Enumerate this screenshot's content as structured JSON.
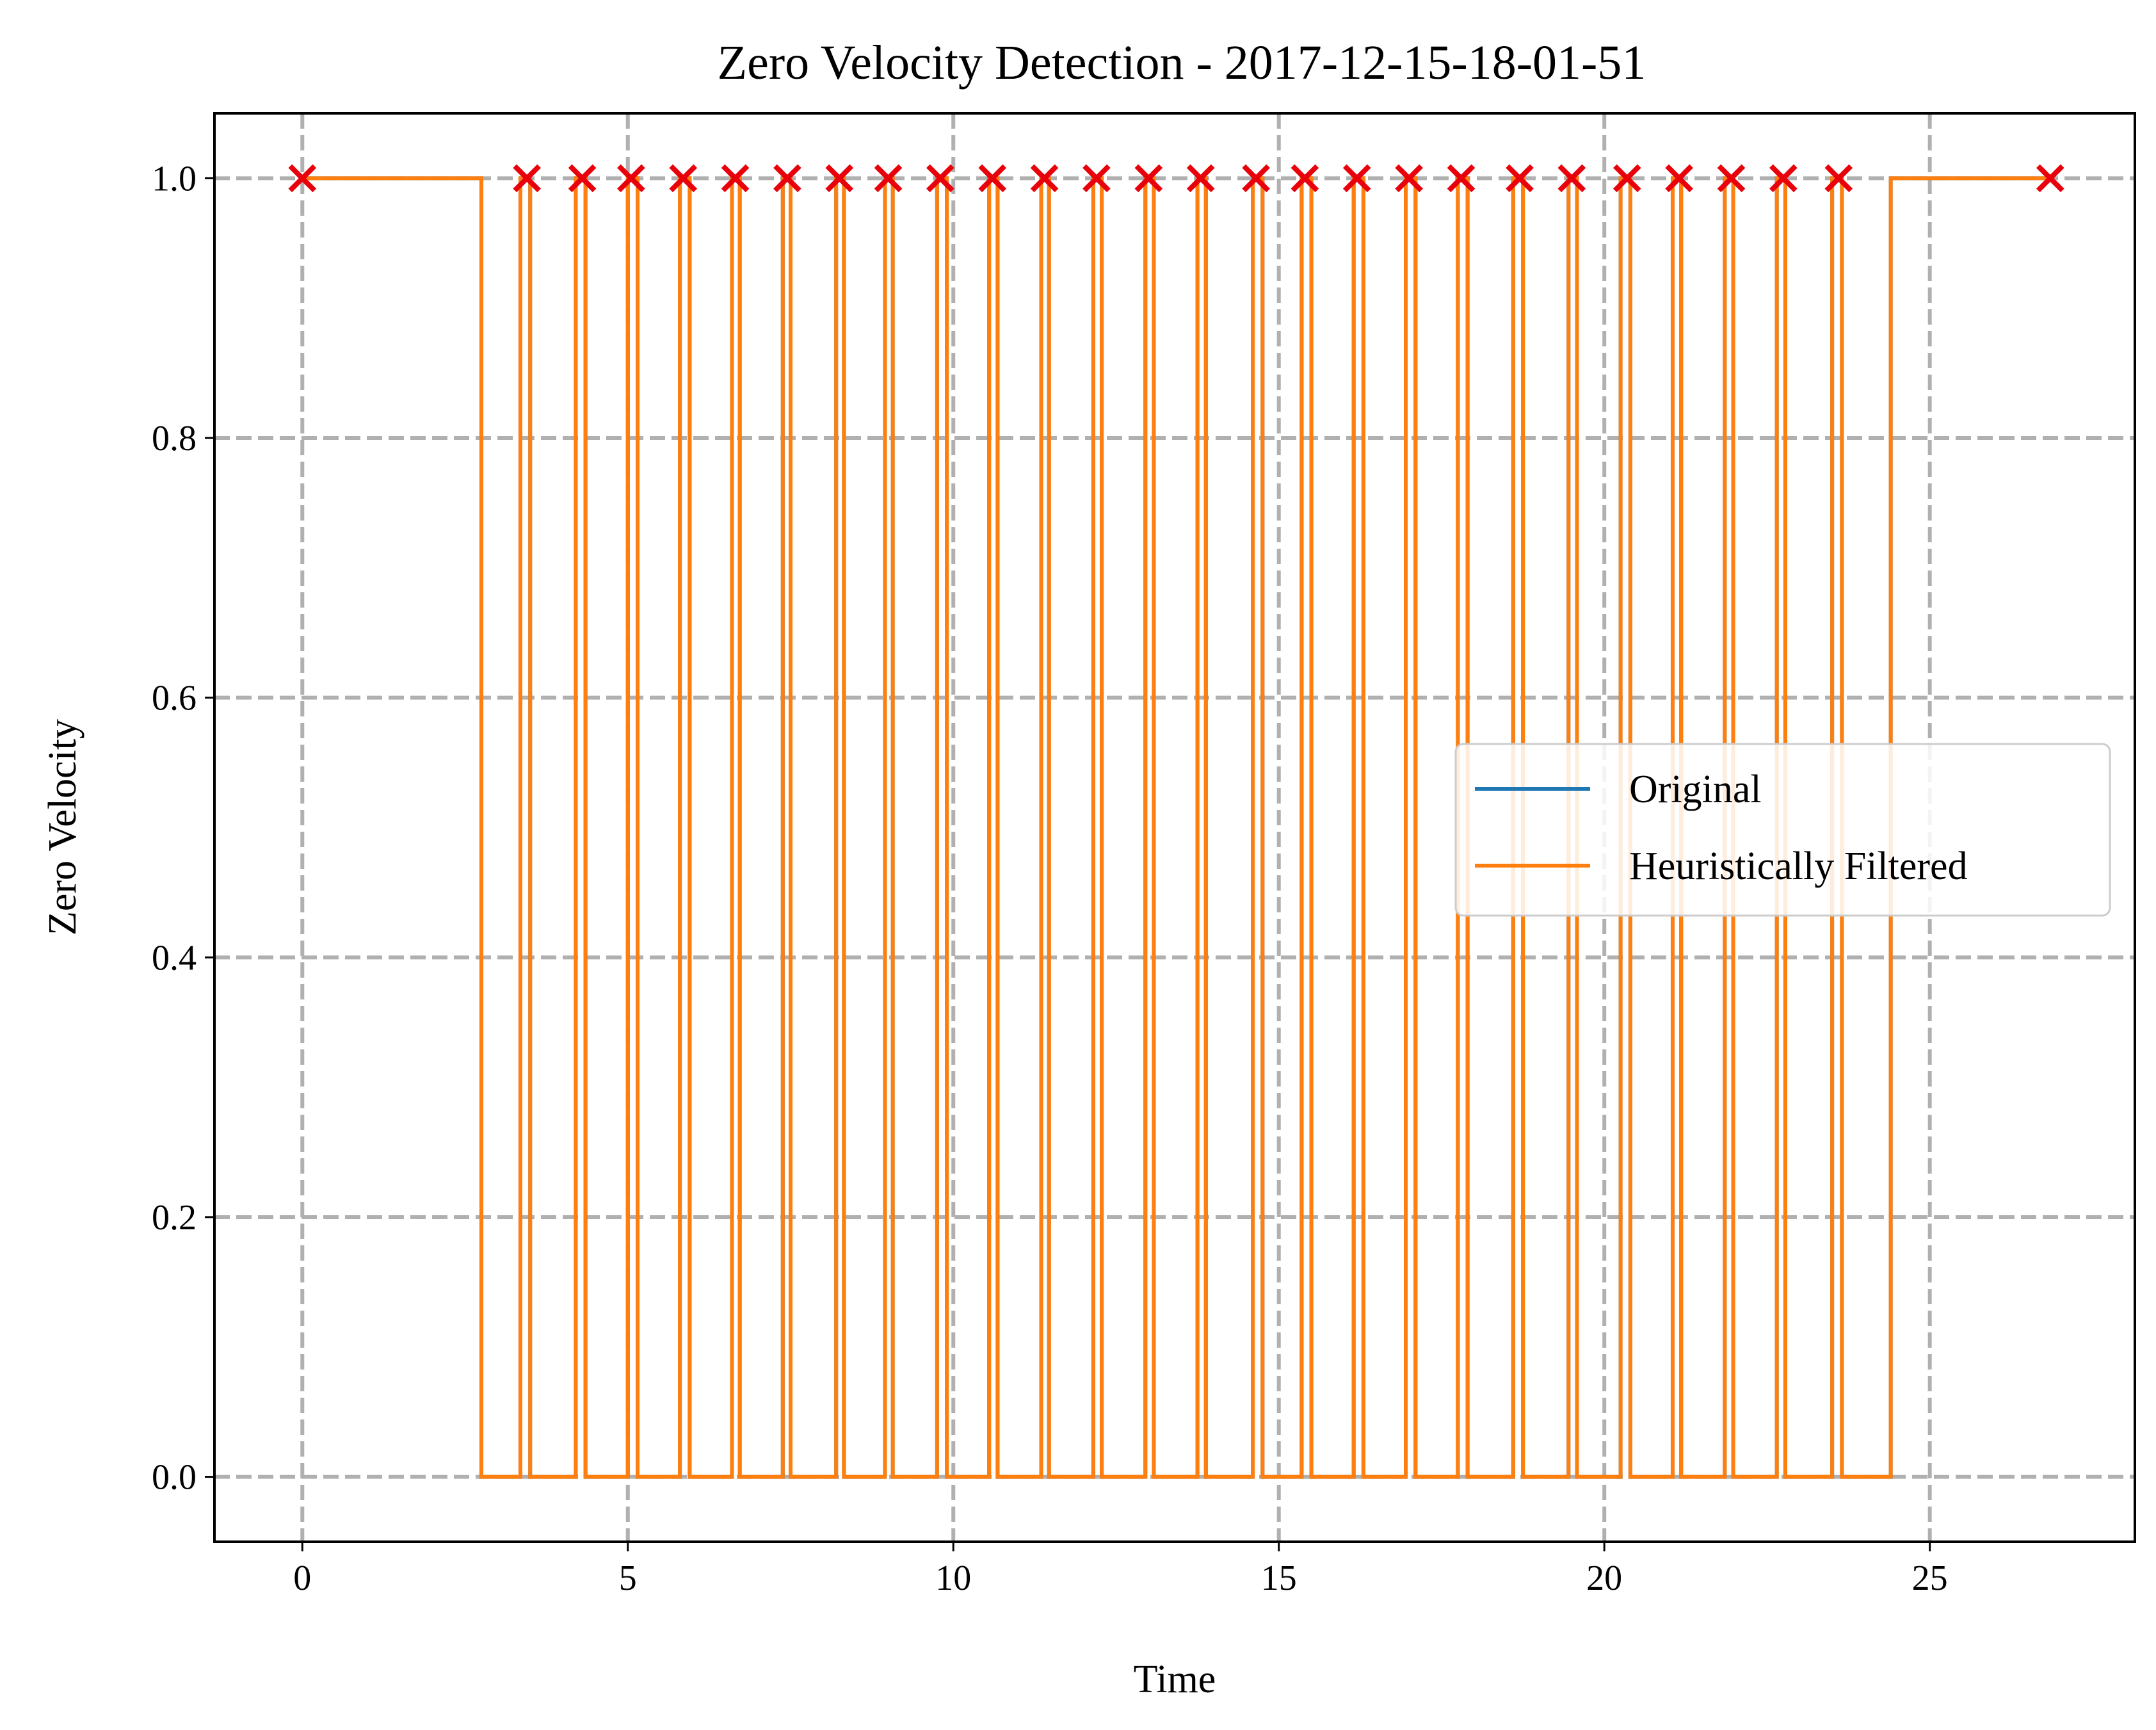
{
  "chart_data": {
    "type": "line",
    "title": "Zero Velocity Detection - 2017-12-15-18-01-51",
    "xlabel": "Time",
    "ylabel": "Zero Velocity",
    "xlim": [
      -1.35,
      28.15
    ],
    "ylim": [
      -0.05,
      1.05
    ],
    "xticks": [
      0,
      5,
      10,
      15,
      20,
      25
    ],
    "yticks": [
      0.0,
      0.2,
      0.4,
      0.6,
      0.8,
      1.0
    ],
    "xtick_labels": [
      "0",
      "5",
      "10",
      "15",
      "20",
      "25"
    ],
    "ytick_labels": [
      "0.0",
      "0.2",
      "0.4",
      "0.6",
      "0.8",
      "1.0"
    ],
    "grid": true,
    "grid_style": "dashed",
    "legend_position": "center-right",
    "series": [
      {
        "name": "Original",
        "color": "#1f77b4",
        "step_transitions": [
          0,
          2.75,
          3.35,
          3.5,
          4.2,
          4.35,
          5.0,
          5.15,
          5.8,
          5.95,
          6.6,
          6.72,
          7.38,
          7.5,
          8.2,
          8.32,
          8.95,
          9.07,
          9.75,
          9.9,
          10.55,
          10.68,
          11.35,
          11.47,
          12.15,
          12.28,
          12.95,
          13.08,
          13.75,
          13.88,
          14.6,
          14.75,
          15.35,
          15.5,
          16.15,
          16.3,
          16.95,
          17.1,
          17.75,
          17.9,
          18.6,
          18.75,
          19.45,
          19.58,
          20.25,
          20.4,
          21.05,
          21.18,
          21.85,
          21.98,
          22.65,
          22.78,
          23.5,
          23.65,
          24.4,
          26.85
        ],
        "initial_value": 1
      },
      {
        "name": "Heuristically Filtered",
        "color": "#ff7f0e",
        "step_transitions": [
          0,
          2.75,
          3.35,
          3.5,
          4.2,
          4.35,
          5.0,
          5.15,
          5.8,
          5.95,
          6.6,
          6.72,
          7.38,
          7.5,
          8.2,
          8.32,
          8.95,
          9.07,
          9.75,
          9.9,
          10.55,
          10.68,
          11.35,
          11.47,
          12.15,
          12.28,
          12.95,
          13.08,
          13.75,
          13.88,
          14.6,
          14.75,
          15.35,
          15.5,
          16.15,
          16.3,
          16.95,
          17.1,
          17.75,
          17.9,
          18.6,
          18.75,
          19.45,
          19.58,
          20.25,
          20.4,
          21.05,
          21.18,
          21.85,
          21.98,
          22.65,
          22.78,
          23.5,
          23.65,
          24.4,
          26.85
        ],
        "initial_value": 1
      }
    ],
    "markers": {
      "color": "#e8000b",
      "symbol": "x",
      "y": 1.0,
      "x": [
        0,
        3.45,
        4.3,
        5.05,
        5.85,
        6.65,
        7.45,
        8.25,
        9.0,
        9.8,
        10.6,
        11.4,
        12.2,
        13.0,
        13.8,
        14.65,
        15.4,
        16.2,
        17.0,
        17.8,
        18.7,
        19.5,
        20.35,
        21.15,
        21.95,
        22.75,
        23.6,
        26.85
      ]
    }
  }
}
